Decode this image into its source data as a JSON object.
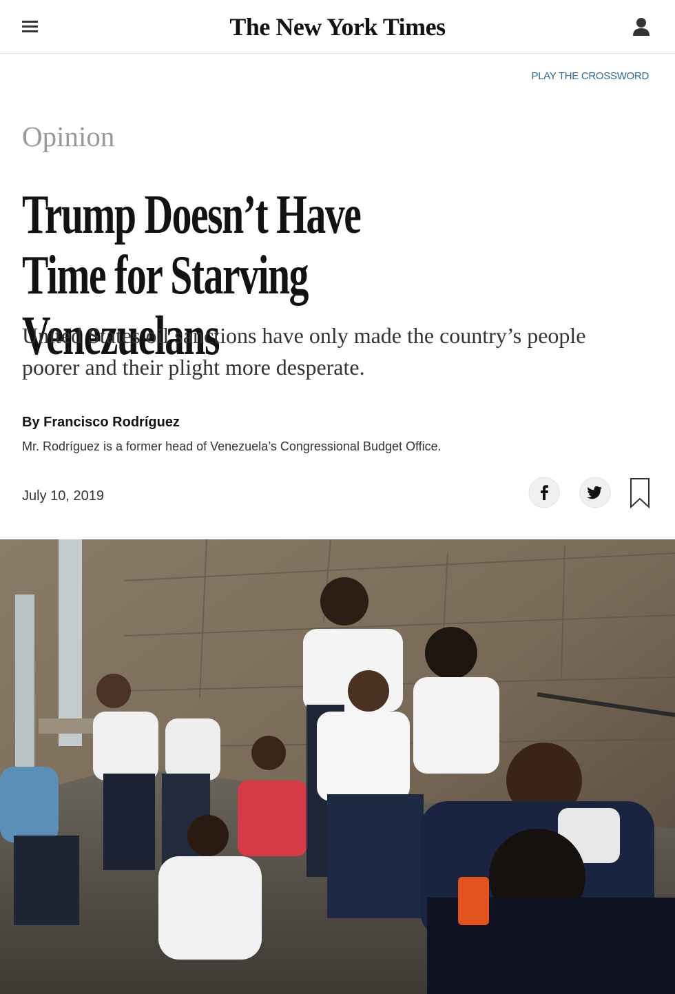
{
  "header": {
    "logo": "The New York Times"
  },
  "crossword_link": "PLAY THE CROSSWORD",
  "article": {
    "section": "Opinion",
    "headline": "Trump Doesn’t Have Time for Starving Venezuelans",
    "dek": "United States oil sanctions have only made the country’s people poorer and their plight more desperate.",
    "byline": "By Francisco Rodríguez",
    "author_bio": "Mr. Rodríguez is a former head of Venezuela’s Congressional Budget Office.",
    "date": "July 10, 2019"
  }
}
